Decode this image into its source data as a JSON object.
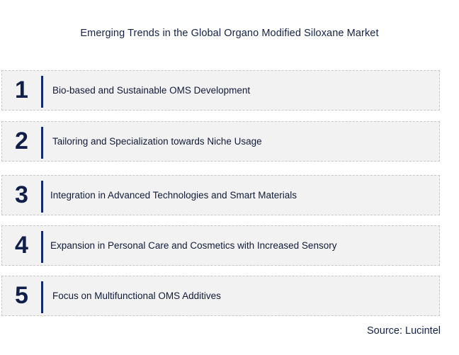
{
  "title": "Emerging Trends in the Global Organo Modified Siloxane Market",
  "trends": [
    {
      "number": "1",
      "text": "Bio-based and Sustainable OMS Development"
    },
    {
      "number": "2",
      "text": "Tailoring and Specialization towards Niche Usage"
    },
    {
      "number": "3",
      "text": "Integration in Advanced Technologies and Smart Materials"
    },
    {
      "number": "4",
      "text": "Expansion in Personal Care and Cosmetics with Increased Sensory"
    },
    {
      "number": "5",
      "text": "Focus on Multifunctional OMS Additives"
    }
  ],
  "source": "Source: Lucintel",
  "colors": {
    "accent_bar": "#112a6b",
    "box_fill": "#f2f2f2",
    "text": "#111b38"
  }
}
